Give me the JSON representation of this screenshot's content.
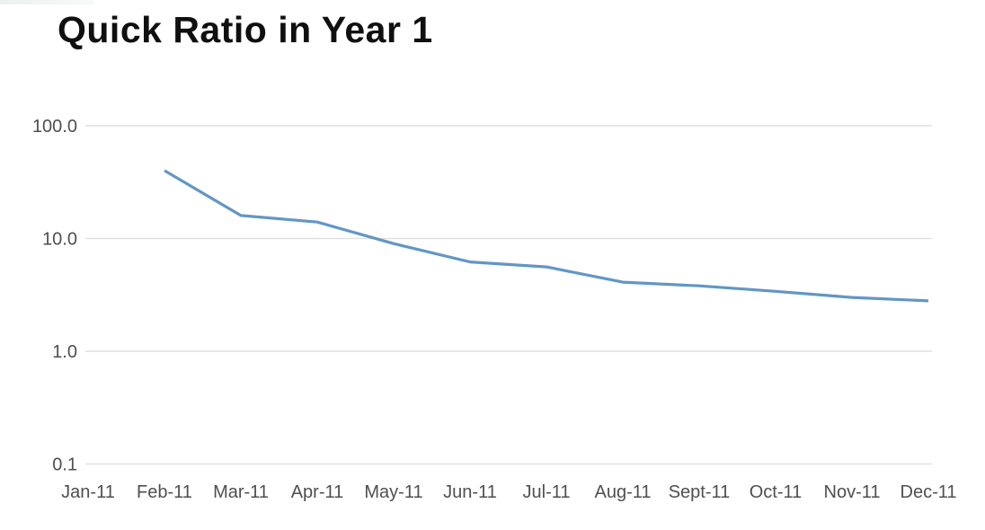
{
  "header": {
    "title": "Quick Ratio in Year 1"
  },
  "colors": {
    "line": "#6296c6",
    "grid": "#e1e1e1",
    "axis_text": "#4f4f4f",
    "title_text": "#101010",
    "background": "#ffffff"
  },
  "chart_data": {
    "type": "line",
    "title": "Quick Ratio in Year 1",
    "xlabel": "",
    "ylabel": "",
    "categories": [
      "Jan-11",
      "Feb-11",
      "Mar-11",
      "Apr-11",
      "May-11",
      "Jun-11",
      "Jul-11",
      "Aug-11",
      "Sept-11",
      "Oct-11",
      "Nov-11",
      "Dec-11"
    ],
    "series": [
      {
        "name": "Quick Ratio",
        "color": "#6296c6",
        "values": [
          null,
          40,
          16,
          14,
          9,
          6.2,
          5.6,
          4.1,
          3.8,
          3.4,
          3.0,
          2.8
        ]
      }
    ],
    "y_axis": {
      "scale": "log",
      "range": [
        0.1,
        100
      ],
      "ticks": [
        {
          "label": "100.0",
          "value": 100
        },
        {
          "label": "10.0",
          "value": 10
        },
        {
          "label": "1.0",
          "value": 1
        },
        {
          "label": "0.1",
          "value": 0.1
        }
      ]
    },
    "grid": {
      "horizontal": true,
      "vertical": false
    },
    "legend_position": "none"
  }
}
